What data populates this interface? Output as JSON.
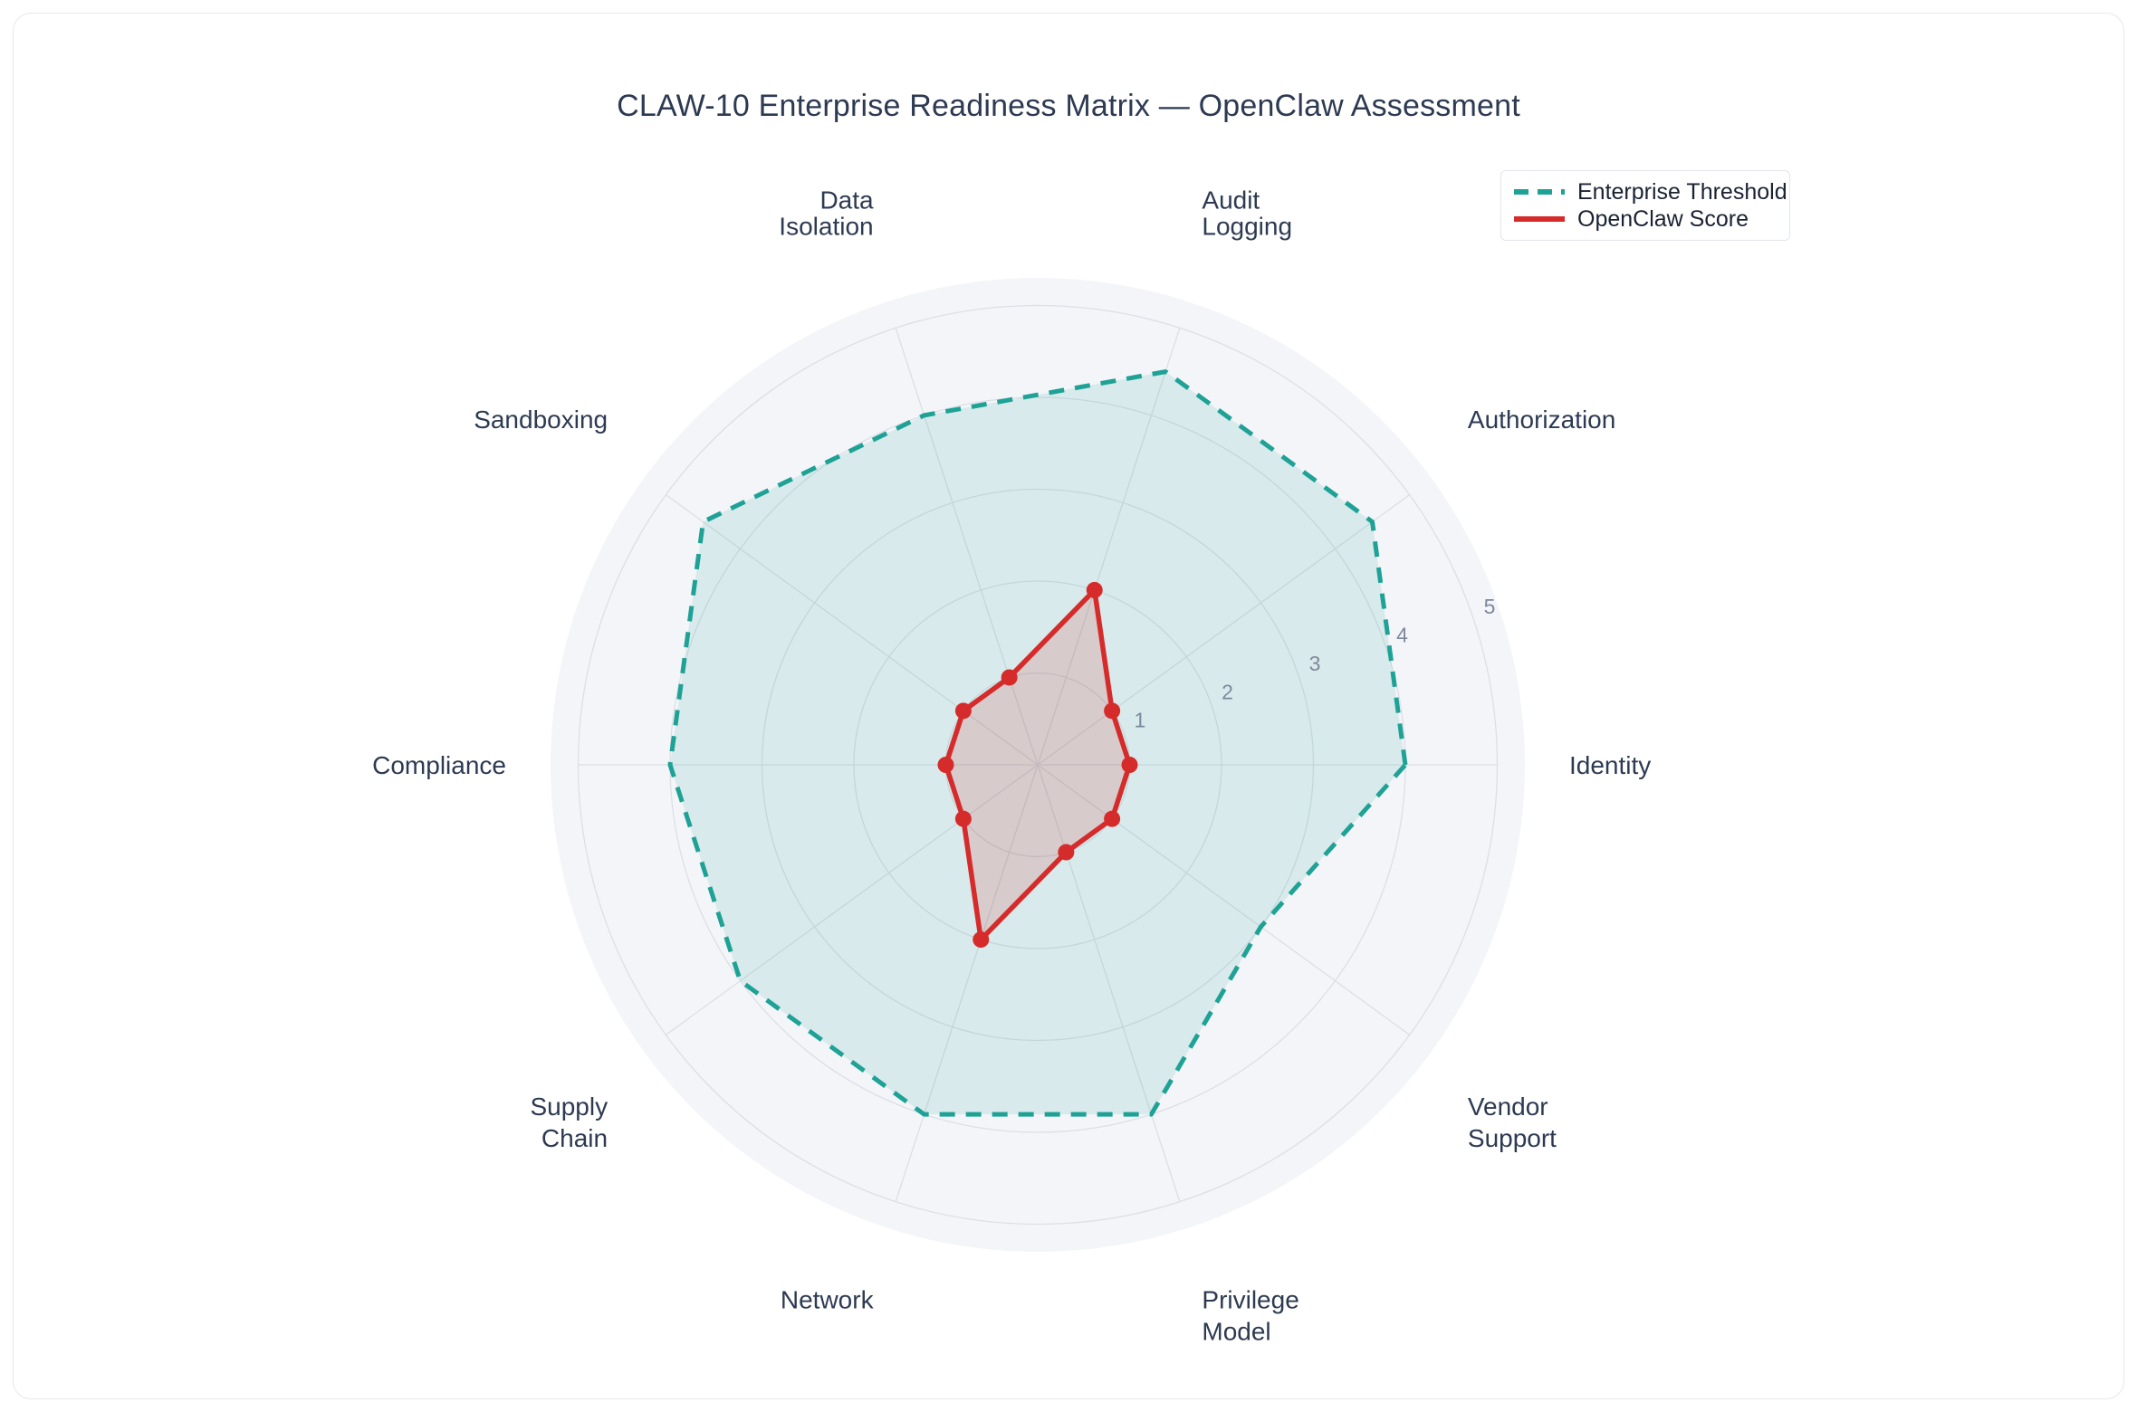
{
  "title": "CLAW-10 Enterprise Readiness Matrix — OpenClaw Assessment",
  "legend": {
    "position": "top-right"
  },
  "chart_data": {
    "type": "radar",
    "categories": [
      "Identity",
      "Authorization",
      "Audit Logging",
      "Data Isolation",
      "Sandboxing",
      "Compliance",
      "Supply Chain",
      "Network",
      "Privilege Model",
      "Vendor Support"
    ],
    "angles_deg": [
      0,
      36,
      72,
      108,
      144,
      180,
      216,
      252,
      288,
      324
    ],
    "series": [
      {
        "name": "Enterprise Threshold",
        "values": [
          4,
          4.5,
          4.5,
          4,
          4.5,
          4,
          4,
          4,
          4,
          3
        ],
        "color": "#1fa296",
        "fill": "rgba(31,162,150,0.13)",
        "dash": true,
        "markers": false
      },
      {
        "name": "OpenClaw Score",
        "values": [
          1,
          1,
          2,
          1,
          1,
          1,
          1,
          2,
          1,
          1
        ],
        "color": "#d62b2b",
        "fill": "rgba(214,43,43,0.16)",
        "dash": false,
        "markers": true
      }
    ],
    "radial_ticks": [
      1,
      2,
      3,
      4,
      5
    ],
    "range": [
      0,
      5.3
    ],
    "grid": true,
    "legend_position": "top-right",
    "tick_color": "#7e889e",
    "label_color": "#2d3a52",
    "grid_color": "#dcdfe6",
    "background_color": "#f4f5f8"
  }
}
